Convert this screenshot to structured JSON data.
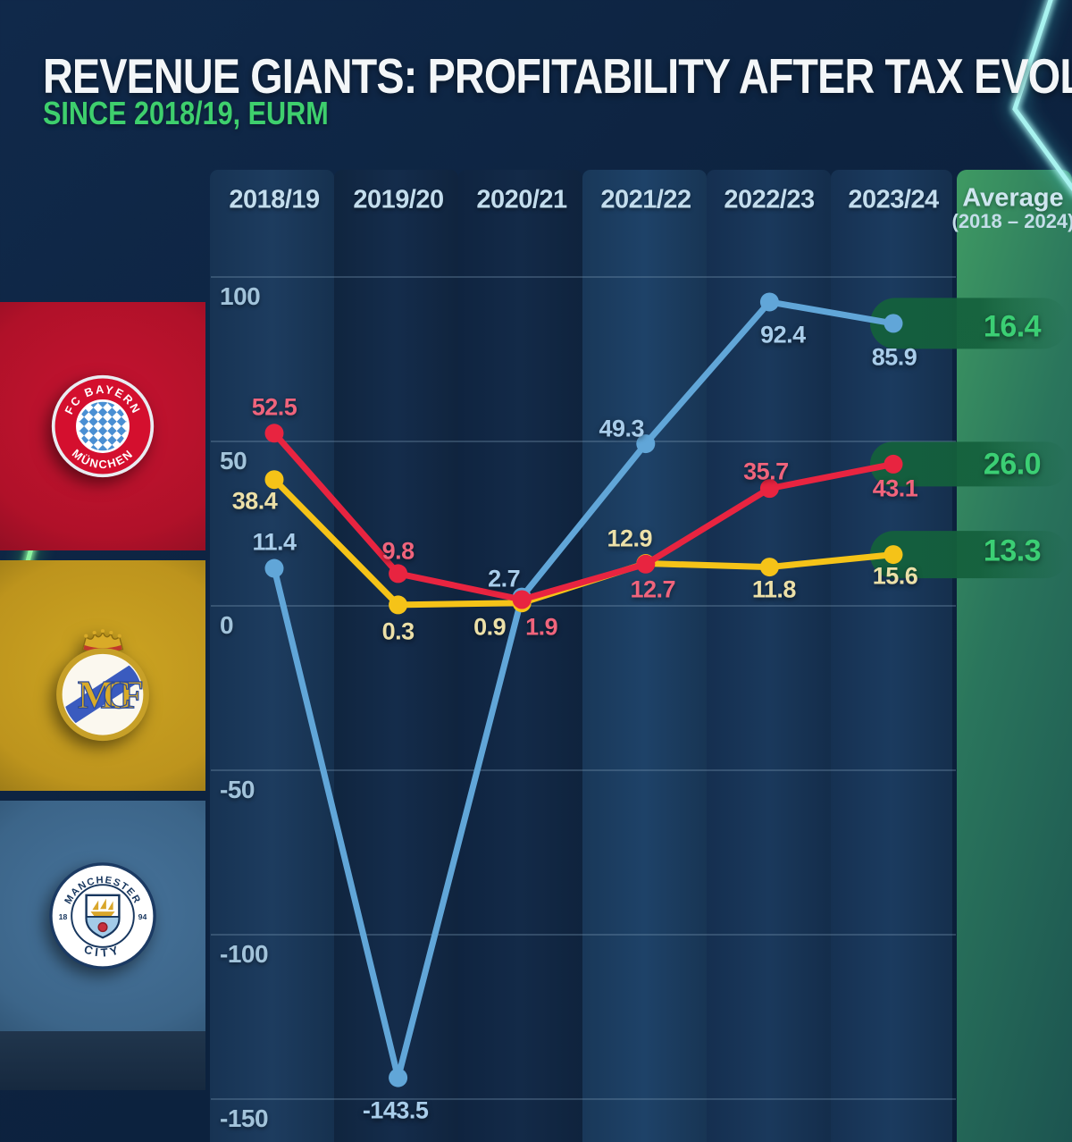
{
  "title": "REVENUE GIANTS: PROFITABILITY AFTER TAX EVOLUTION",
  "subtitle": "SINCE 2018/19, EURM",
  "colors": {
    "background": "#0d2340",
    "title": "#f3f6f8",
    "subtitle_green": "#3ecf6d",
    "average_value_green": "#3bcf74",
    "capsule_green": "#14603c",
    "neon_green": "#43e361",
    "neon_cyan": "#9af0ec",
    "gridline": "#7e9cb6"
  },
  "average_column": {
    "header_line1": "Average",
    "header_line2": "(2018 – 2024)"
  },
  "clubs": [
    {
      "name": "FC Bayern München",
      "badge_top": "FC BAYERN",
      "badge_bottom": "MÜNCHEN",
      "panel_color": "#b01129"
    },
    {
      "name": "Real Madrid",
      "monogram": "MCF",
      "panel_color": "#bd941d"
    },
    {
      "name": "Manchester City",
      "badge_top": "MANCHESTER",
      "badge_bottom": "CITY",
      "year_left": "18",
      "year_right": "94",
      "panel_color": "#3c6589"
    }
  ],
  "chart_data": {
    "type": "line",
    "title": "Profitability after tax since 2018/19 (EURm)",
    "categories": [
      "2018/19",
      "2019/20",
      "2020/21",
      "2021/22",
      "2022/23",
      "2023/24"
    ],
    "series": [
      {
        "name": "FC Bayern München",
        "color": "#e82440",
        "label_color": "#f0647c",
        "values": [
          52.5,
          9.8,
          1.9,
          12.7,
          35.7,
          43.1
        ],
        "value_labels": [
          "52.5",
          "9.8",
          "1.9",
          "12.7",
          "35.7",
          "43.1"
        ],
        "average": 26.0,
        "average_label": "26.0"
      },
      {
        "name": "Real Madrid",
        "color": "#f5c318",
        "label_color": "#ece0a8",
        "values": [
          38.4,
          0.3,
          0.9,
          12.9,
          11.8,
          15.6
        ],
        "value_labels": [
          "38.4",
          "0.3",
          "0.9",
          "12.9",
          "11.8",
          "15.6"
        ],
        "average": 13.3,
        "average_label": "13.3"
      },
      {
        "name": "Manchester City",
        "color": "#61a6d8",
        "label_color": "#a9cdea",
        "values": [
          11.4,
          -143.5,
          2.7,
          49.3,
          92.4,
          85.9
        ],
        "value_labels": [
          "11.4",
          "-143.5",
          "2.7",
          "49.3",
          "92.4",
          "85.9"
        ],
        "average": 16.4,
        "average_label": "16.4"
      }
    ],
    "axis": {
      "yticks": [
        100,
        50,
        0,
        -50,
        -100,
        -150
      ],
      "ytick_labels": [
        "100",
        "50",
        "0",
        "-50",
        "-100",
        "-150"
      ],
      "ylim": [
        -160,
        110
      ]
    },
    "grid": "horizontal lines on",
    "legend_position": "club badges in left panels"
  }
}
